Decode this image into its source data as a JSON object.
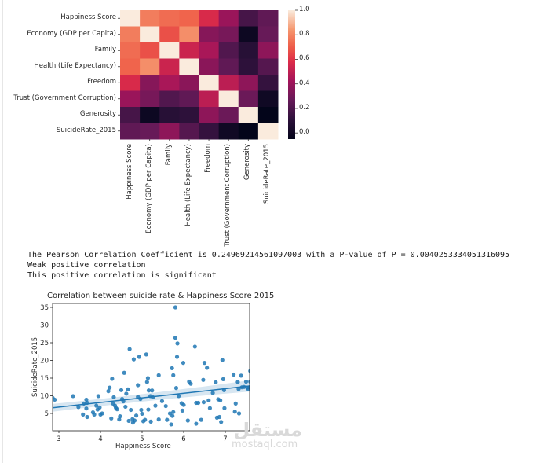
{
  "heatmap": {
    "labels": [
      "Happiness Score",
      "Economy (GDP per Capita)",
      "Family",
      "Health (Life Expectancy)",
      "Freedom",
      "Trust (Government Corruption)",
      "Generosity",
      "SuicideRate_2015"
    ],
    "colorbar_ticks": [
      "1.0",
      "0.8",
      "0.6",
      "0.4",
      "0.2",
      "0.0"
    ]
  },
  "output": {
    "line1": "The Pearson Correlation Coefficient is 0.24969214561097003 with a P-value of P = 0.0040253334051316095",
    "line2": "Weak positive correlation",
    "line3": "This positive correlation is significant"
  },
  "scatter": {
    "title": "Correlation between suicide rate & Happiness Score 2015",
    "xlabel": "Happiness Score",
    "ylabel": "SuicideRate_2015",
    "xticks": [
      "3",
      "4",
      "5",
      "6",
      "7"
    ],
    "yticks": [
      "5",
      "10",
      "15",
      "20",
      "25",
      "30",
      "35"
    ]
  },
  "watermark": {
    "arabic": "مستقل",
    "latin": "mostaql.com"
  },
  "chart_data": [
    {
      "type": "heatmap",
      "title": "",
      "rows": [
        "Happiness Score",
        "Economy (GDP per Capita)",
        "Family",
        "Health (Life Expectancy)",
        "Freedom",
        "Trust (Government Corruption)",
        "Generosity",
        "SuicideRate_2015"
      ],
      "cols": [
        "Happiness Score",
        "Economy (GDP per Capita)",
        "Family",
        "Health (Life Expectancy)",
        "Freedom",
        "Trust (Government Corruption)",
        "Generosity",
        "SuicideRate_2015"
      ],
      "values": [
        [
          1.0,
          0.78,
          0.74,
          0.72,
          0.57,
          0.4,
          0.18,
          0.25
        ],
        [
          0.78,
          1.0,
          0.67,
          0.82,
          0.35,
          0.31,
          -0.01,
          0.27
        ],
        [
          0.74,
          0.67,
          1.0,
          0.53,
          0.44,
          0.21,
          0.09,
          0.37
        ],
        [
          0.72,
          0.82,
          0.53,
          1.0,
          0.36,
          0.25,
          0.11,
          0.22
        ],
        [
          0.57,
          0.35,
          0.44,
          0.36,
          1.0,
          0.49,
          0.37,
          0.13
        ],
        [
          0.4,
          0.31,
          0.21,
          0.25,
          0.49,
          1.0,
          0.28,
          0.0
        ],
        [
          0.18,
          -0.01,
          0.09,
          0.11,
          0.37,
          0.28,
          1.0,
          -0.05
        ],
        [
          0.25,
          0.27,
          0.37,
          0.22,
          0.13,
          0.0,
          -0.05,
          1.0
        ]
      ],
      "colorbar": {
        "min": -0.05,
        "max": 1.0,
        "ticks": [
          0.0,
          0.2,
          0.4,
          0.6,
          0.8,
          1.0
        ],
        "colormap": "rocket"
      }
    },
    {
      "type": "scatter",
      "title": "Correlation between suicide rate & Happiness Score 2015",
      "xlabel": "Happiness Score",
      "ylabel": "SuicideRate_2015",
      "xlim": [
        2.85,
        7.6
      ],
      "ylim": [
        0.5,
        36.5
      ],
      "xticks": [
        3,
        4,
        5,
        6,
        7
      ],
      "yticks": [
        5,
        10,
        15,
        20,
        25,
        30,
        35
      ],
      "grid": false,
      "regression": {
        "x": [
          2.85,
          7.6
        ],
        "y": [
          6.6,
          12.8
        ],
        "ci_halfwidth_ends": [
          1.1,
          1.6
        ],
        "color": "#1f77b4"
      },
      "color": "#1f77b4",
      "points": [
        [
          2.85,
          9.4
        ],
        [
          2.9,
          8.9
        ],
        [
          3.34,
          9.9
        ],
        [
          3.47,
          6.8
        ],
        [
          3.58,
          4.7
        ],
        [
          3.6,
          7.8
        ],
        [
          3.66,
          6.4
        ],
        [
          3.66,
          8.9
        ],
        [
          3.68,
          4.0
        ],
        [
          3.68,
          8.0
        ],
        [
          3.82,
          5.3
        ],
        [
          3.85,
          4.7
        ],
        [
          3.9,
          7.2
        ],
        [
          3.93,
          6.1
        ],
        [
          3.95,
          9.9
        ],
        [
          3.98,
          6.7
        ],
        [
          4.0,
          4.7
        ],
        [
          4.04,
          5.0
        ],
        [
          4.19,
          11.3
        ],
        [
          4.22,
          12.3
        ],
        [
          4.26,
          3.6
        ],
        [
          4.28,
          14.8
        ],
        [
          4.3,
          7.8
        ],
        [
          4.32,
          9.6
        ],
        [
          4.35,
          7.2
        ],
        [
          4.37,
          6.6
        ],
        [
          4.4,
          6.2
        ],
        [
          4.45,
          3.3
        ],
        [
          4.47,
          4.2
        ],
        [
          4.5,
          11.6
        ],
        [
          4.52,
          9.1
        ],
        [
          4.55,
          8.4
        ],
        [
          4.57,
          16.5
        ],
        [
          4.6,
          6.9
        ],
        [
          4.62,
          10.6
        ],
        [
          4.66,
          11.8
        ],
        [
          4.68,
          2.9
        ],
        [
          4.7,
          23.2
        ],
        [
          4.73,
          6.0
        ],
        [
          4.77,
          3.4
        ],
        [
          4.78,
          2.4
        ],
        [
          4.8,
          20.3
        ],
        [
          4.82,
          3.0
        ],
        [
          4.86,
          4.4
        ],
        [
          4.9,
          13.0
        ],
        [
          4.9,
          9.7
        ],
        [
          4.93,
          21.0
        ],
        [
          4.96,
          9.1
        ],
        [
          4.98,
          6.0
        ],
        [
          5.0,
          4.9
        ],
        [
          5.03,
          2.8
        ],
        [
          5.07,
          3.2
        ],
        [
          5.1,
          21.7
        ],
        [
          5.12,
          13.9
        ],
        [
          5.14,
          15.0
        ],
        [
          5.15,
          6.1
        ],
        [
          5.16,
          11.5
        ],
        [
          5.2,
          9.9
        ],
        [
          5.21,
          2.7
        ],
        [
          5.24,
          11.5
        ],
        [
          5.26,
          9.6
        ],
        [
          5.32,
          7.2
        ],
        [
          5.4,
          15.8
        ],
        [
          5.4,
          3.3
        ],
        [
          5.48,
          8.5
        ],
        [
          5.57,
          7.1
        ],
        [
          5.6,
          3.2
        ],
        [
          5.67,
          5.0
        ],
        [
          5.7,
          1.9
        ],
        [
          5.72,
          17.8
        ],
        [
          5.73,
          4.3
        ],
        [
          5.75,
          5.4
        ],
        [
          5.75,
          15.8
        ],
        [
          5.8,
          35.0
        ],
        [
          5.8,
          26.4
        ],
        [
          5.82,
          12.2
        ],
        [
          5.84,
          21.0
        ],
        [
          5.85,
          24.8
        ],
        [
          5.88,
          9.9
        ],
        [
          5.95,
          7.9
        ],
        [
          5.97,
          5.8
        ],
        [
          5.99,
          19.3
        ],
        [
          6.0,
          7.4
        ],
        [
          6.1,
          3.0
        ],
        [
          6.13,
          14.0
        ],
        [
          6.17,
          13.4
        ],
        [
          6.27,
          23.9
        ],
        [
          6.3,
          2.1
        ],
        [
          6.3,
          8.0
        ],
        [
          6.35,
          8.0
        ],
        [
          6.42,
          3.2
        ],
        [
          6.47,
          14.5
        ],
        [
          6.48,
          8.2
        ],
        [
          6.5,
          19.3
        ],
        [
          6.56,
          17.9
        ],
        [
          6.6,
          8.7
        ],
        [
          6.63,
          6.5
        ],
        [
          6.7,
          10.8
        ],
        [
          6.77,
          13.8
        ],
        [
          6.8,
          3.8
        ],
        [
          6.83,
          9.0
        ],
        [
          6.86,
          4.0
        ],
        [
          6.88,
          8.7
        ],
        [
          6.9,
          2.6
        ],
        [
          6.93,
          20.1
        ],
        [
          6.95,
          14.7
        ],
        [
          6.97,
          11.6
        ],
        [
          6.98,
          6.5
        ],
        [
          7.2,
          16.0
        ],
        [
          7.23,
          5.5
        ],
        [
          7.25,
          7.8
        ],
        [
          7.3,
          13.9
        ],
        [
          7.32,
          11.9
        ],
        [
          7.33,
          5.0
        ],
        [
          7.38,
          15.7
        ],
        [
          7.4,
          12.4
        ],
        [
          7.45,
          12.5
        ],
        [
          7.5,
          14.0
        ],
        [
          7.53,
          12.3
        ],
        [
          7.55,
          11.9
        ],
        [
          7.58,
          12.4
        ],
        [
          7.6,
          14.0
        ],
        [
          7.6,
          17.0
        ]
      ]
    }
  ]
}
